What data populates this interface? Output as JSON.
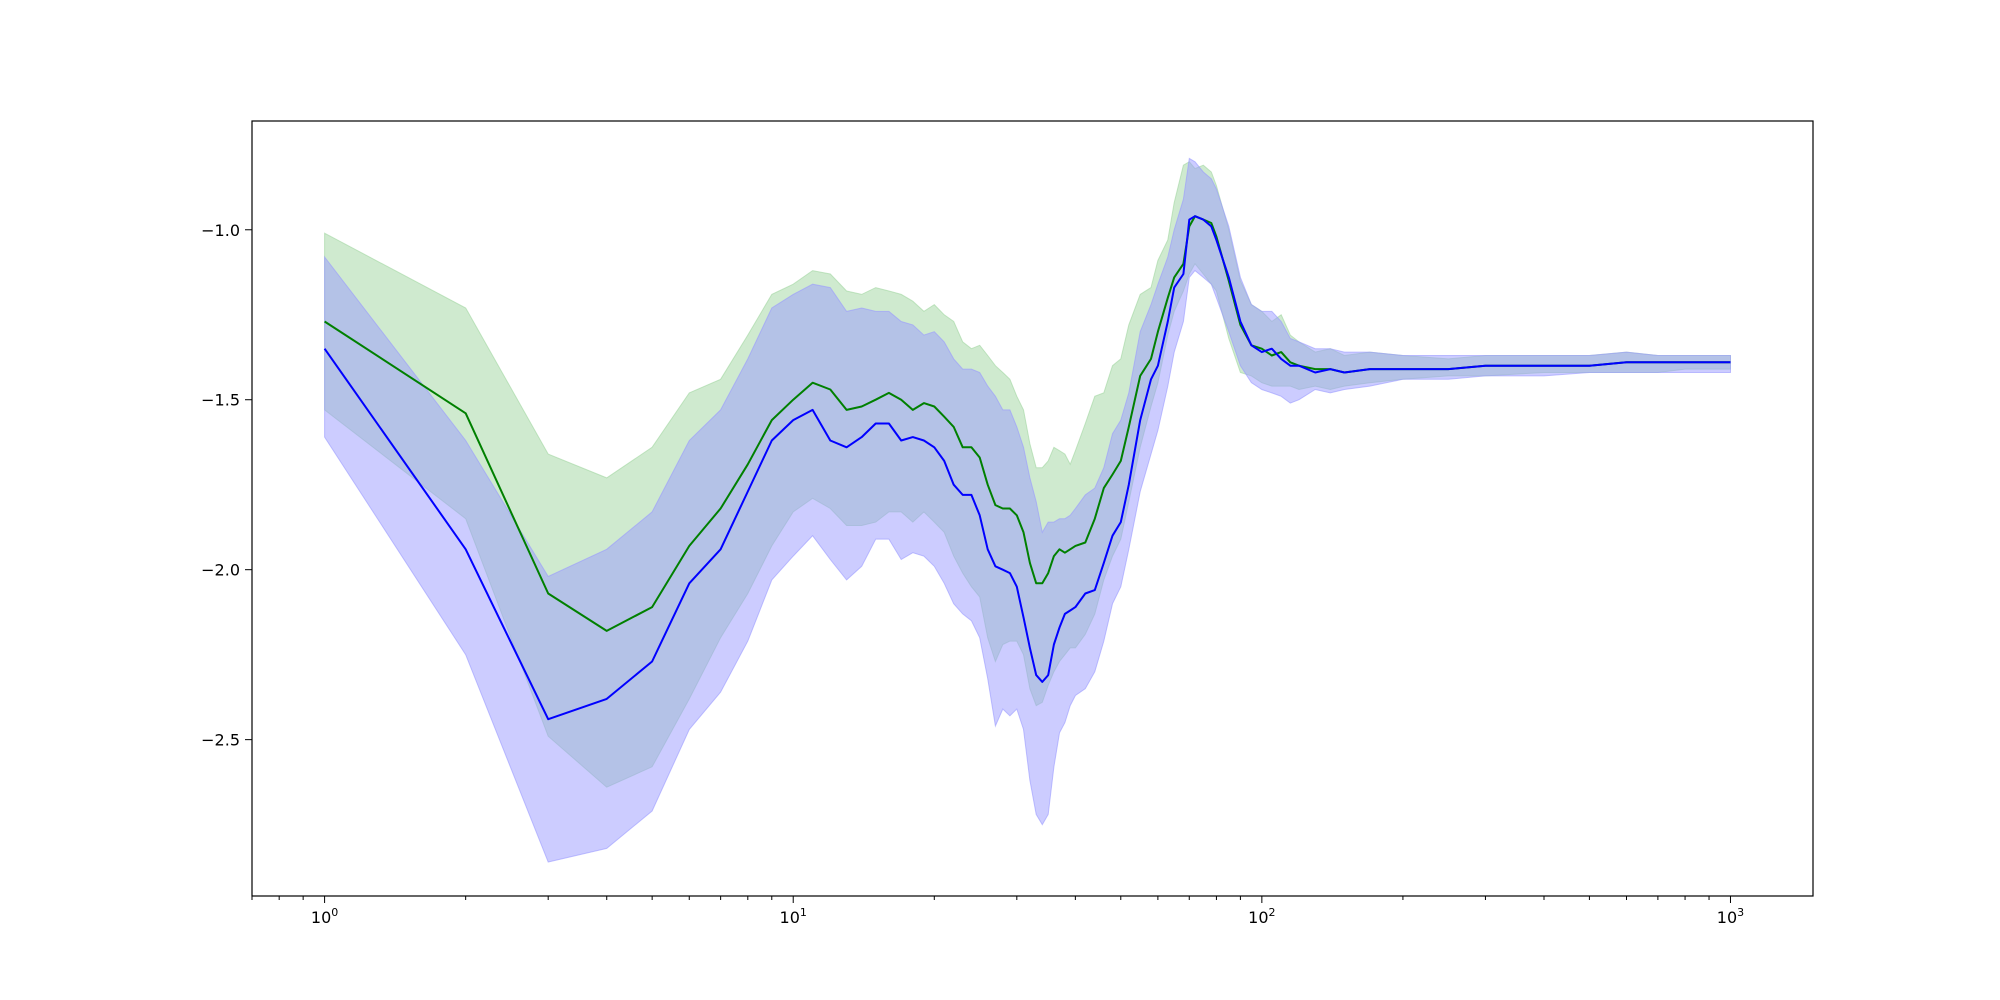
{
  "chart_data": {
    "type": "line",
    "title": "",
    "xlabel": "",
    "ylabel": "",
    "xscale": "log",
    "xlim": [
      0.7,
      1500
    ],
    "ylim": [
      -2.96,
      -0.68
    ],
    "grid": false,
    "x_ticks": [
      {
        "value": 1,
        "base": "10",
        "exp": "0"
      },
      {
        "value": 10,
        "base": "10",
        "exp": "1"
      },
      {
        "value": 100,
        "base": "10",
        "exp": "2"
      },
      {
        "value": 1000,
        "base": "10",
        "exp": "3"
      }
    ],
    "y_ticks": [
      {
        "value": -1.0,
        "label": "−1.0"
      },
      {
        "value": -1.5,
        "label": "−1.5"
      },
      {
        "value": -2.0,
        "label": "−2.0"
      },
      {
        "value": -2.5,
        "label": "−2.5"
      }
    ],
    "colors": {
      "green": "#008000",
      "blue": "#0000ff",
      "green_band": "#a0d6a0",
      "blue_band": "#9a9aff",
      "frame": "#000000"
    },
    "series": [
      {
        "color": "#008000",
        "band_color": "#a0d6a0",
        "band_opacity": 0.5,
        "x": [
          1,
          2,
          3,
          4,
          5,
          6,
          7,
          8,
          9,
          10,
          11,
          12,
          13,
          14,
          15,
          16,
          17,
          18,
          19,
          20,
          21,
          22,
          23,
          24,
          25,
          26,
          27,
          28,
          29,
          30,
          31,
          32,
          33,
          34,
          35,
          36,
          37,
          38,
          39,
          40,
          42,
          44,
          46,
          48,
          50,
          52,
          55,
          58,
          60,
          63,
          65,
          68,
          70,
          72,
          75,
          78,
          80,
          85,
          90,
          95,
          100,
          105,
          110,
          115,
          120,
          130,
          140,
          150,
          170,
          200,
          250,
          300,
          400,
          500,
          600,
          700,
          800,
          1000
        ],
        "y": [
          -1.27,
          -1.54,
          -2.07,
          -2.18,
          -2.11,
          -1.93,
          -1.82,
          -1.69,
          -1.56,
          -1.5,
          -1.45,
          -1.47,
          -1.53,
          -1.52,
          -1.5,
          -1.48,
          -1.5,
          -1.53,
          -1.51,
          -1.52,
          -1.55,
          -1.58,
          -1.64,
          -1.64,
          -1.67,
          -1.75,
          -1.81,
          -1.82,
          -1.82,
          -1.84,
          -1.89,
          -1.98,
          -2.04,
          -2.04,
          -2.01,
          -1.96,
          -1.94,
          -1.95,
          -1.94,
          -1.93,
          -1.92,
          -1.85,
          -1.76,
          -1.72,
          -1.68,
          -1.58,
          -1.43,
          -1.38,
          -1.3,
          -1.2,
          -1.14,
          -1.1,
          -0.99,
          -0.96,
          -0.97,
          -0.98,
          -1.02,
          -1.15,
          -1.28,
          -1.34,
          -1.35,
          -1.37,
          -1.36,
          -1.39,
          -1.4,
          -1.41,
          -1.41,
          -1.42,
          -1.41,
          -1.41,
          -1.41,
          -1.4,
          -1.4,
          -1.4,
          -1.39,
          -1.39,
          -1.39,
          -1.39
        ],
        "upper": [
          -1.01,
          -1.23,
          -1.66,
          -1.73,
          -1.64,
          -1.48,
          -1.44,
          -1.31,
          -1.19,
          -1.16,
          -1.12,
          -1.13,
          -1.18,
          -1.19,
          -1.17,
          -1.18,
          -1.19,
          -1.21,
          -1.24,
          -1.22,
          -1.25,
          -1.27,
          -1.33,
          -1.35,
          -1.34,
          -1.37,
          -1.4,
          -1.42,
          -1.44,
          -1.49,
          -1.53,
          -1.63,
          -1.7,
          -1.7,
          -1.68,
          -1.64,
          -1.65,
          -1.66,
          -1.69,
          -1.65,
          -1.57,
          -1.49,
          -1.48,
          -1.4,
          -1.38,
          -1.28,
          -1.19,
          -1.17,
          -1.09,
          -1.03,
          -0.92,
          -0.81,
          -0.8,
          -0.82,
          -0.81,
          -0.83,
          -0.87,
          -1.0,
          -1.15,
          -1.22,
          -1.24,
          -1.27,
          -1.25,
          -1.31,
          -1.33,
          -1.36,
          -1.35,
          -1.37,
          -1.36,
          -1.37,
          -1.38,
          -1.37,
          -1.37,
          -1.37,
          -1.36,
          -1.37,
          -1.37,
          -1.37
        ],
        "lower": [
          -1.53,
          -1.85,
          -2.49,
          -2.64,
          -2.58,
          -2.38,
          -2.2,
          -2.07,
          -1.93,
          -1.83,
          -1.79,
          -1.82,
          -1.87,
          -1.87,
          -1.86,
          -1.83,
          -1.83,
          -1.86,
          -1.83,
          -1.86,
          -1.89,
          -1.96,
          -2.01,
          -2.05,
          -2.08,
          -2.2,
          -2.27,
          -2.22,
          -2.21,
          -2.21,
          -2.25,
          -2.35,
          -2.4,
          -2.39,
          -2.34,
          -2.3,
          -2.27,
          -2.25,
          -2.23,
          -2.23,
          -2.19,
          -2.13,
          -2.03,
          -1.96,
          -1.91,
          -1.8,
          -1.64,
          -1.52,
          -1.45,
          -1.31,
          -1.24,
          -1.18,
          -1.13,
          -1.1,
          -1.13,
          -1.16,
          -1.18,
          -1.32,
          -1.42,
          -1.43,
          -1.45,
          -1.46,
          -1.46,
          -1.46,
          -1.47,
          -1.46,
          -1.47,
          -1.46,
          -1.45,
          -1.44,
          -1.43,
          -1.43,
          -1.42,
          -1.42,
          -1.42,
          -1.42,
          -1.41,
          -1.41
        ]
      },
      {
        "color": "#0000ff",
        "band_color": "#9a9aff",
        "band_opacity": 0.5,
        "x": [
          1,
          2,
          3,
          4,
          5,
          6,
          7,
          8,
          9,
          10,
          11,
          12,
          13,
          14,
          15,
          16,
          17,
          18,
          19,
          20,
          21,
          22,
          23,
          24,
          25,
          26,
          27,
          28,
          29,
          30,
          31,
          32,
          33,
          34,
          35,
          36,
          37,
          38,
          39,
          40,
          42,
          44,
          46,
          48,
          50,
          52,
          55,
          58,
          60,
          63,
          65,
          68,
          70,
          72,
          75,
          78,
          80,
          85,
          90,
          95,
          100,
          105,
          110,
          115,
          120,
          130,
          140,
          150,
          170,
          200,
          250,
          300,
          400,
          500,
          600,
          700,
          800,
          1000
        ],
        "y": [
          -1.35,
          -1.94,
          -2.44,
          -2.38,
          -2.27,
          -2.04,
          -1.94,
          -1.77,
          -1.62,
          -1.56,
          -1.53,
          -1.62,
          -1.64,
          -1.61,
          -1.57,
          -1.57,
          -1.62,
          -1.61,
          -1.62,
          -1.64,
          -1.68,
          -1.75,
          -1.78,
          -1.78,
          -1.84,
          -1.94,
          -1.99,
          -2.0,
          -2.01,
          -2.05,
          -2.14,
          -2.23,
          -2.31,
          -2.33,
          -2.31,
          -2.22,
          -2.17,
          -2.13,
          -2.12,
          -2.11,
          -2.07,
          -2.06,
          -1.98,
          -1.9,
          -1.86,
          -1.75,
          -1.56,
          -1.44,
          -1.4,
          -1.27,
          -1.17,
          -1.13,
          -0.97,
          -0.96,
          -0.97,
          -0.99,
          -1.03,
          -1.14,
          -1.27,
          -1.34,
          -1.36,
          -1.35,
          -1.38,
          -1.4,
          -1.4,
          -1.42,
          -1.41,
          -1.42,
          -1.41,
          -1.41,
          -1.41,
          -1.4,
          -1.4,
          -1.4,
          -1.39,
          -1.39,
          -1.39,
          -1.39
        ],
        "upper": [
          -1.08,
          -1.62,
          -2.02,
          -1.94,
          -1.83,
          -1.62,
          -1.53,
          -1.38,
          -1.23,
          -1.19,
          -1.16,
          -1.17,
          -1.24,
          -1.23,
          -1.24,
          -1.24,
          -1.27,
          -1.28,
          -1.31,
          -1.3,
          -1.33,
          -1.38,
          -1.41,
          -1.41,
          -1.42,
          -1.46,
          -1.49,
          -1.53,
          -1.53,
          -1.58,
          -1.64,
          -1.73,
          -1.8,
          -1.89,
          -1.86,
          -1.86,
          -1.85,
          -1.85,
          -1.84,
          -1.82,
          -1.78,
          -1.76,
          -1.7,
          -1.6,
          -1.56,
          -1.48,
          -1.3,
          -1.22,
          -1.16,
          -1.08,
          -1.0,
          -0.91,
          -0.79,
          -0.8,
          -0.83,
          -0.85,
          -0.88,
          -0.99,
          -1.14,
          -1.22,
          -1.24,
          -1.24,
          -1.27,
          -1.32,
          -1.33,
          -1.35,
          -1.35,
          -1.36,
          -1.36,
          -1.37,
          -1.37,
          -1.37,
          -1.37,
          -1.37,
          -1.36,
          -1.37,
          -1.37,
          -1.37
        ],
        "lower": [
          -1.61,
          -2.25,
          -2.86,
          -2.82,
          -2.71,
          -2.47,
          -2.36,
          -2.21,
          -2.03,
          -1.96,
          -1.9,
          -1.97,
          -2.03,
          -1.99,
          -1.91,
          -1.91,
          -1.97,
          -1.95,
          -1.96,
          -1.99,
          -2.04,
          -2.1,
          -2.13,
          -2.15,
          -2.2,
          -2.32,
          -2.46,
          -2.41,
          -2.43,
          -2.41,
          -2.47,
          -2.62,
          -2.72,
          -2.75,
          -2.72,
          -2.58,
          -2.48,
          -2.45,
          -2.4,
          -2.37,
          -2.35,
          -2.3,
          -2.21,
          -2.1,
          -2.05,
          -1.94,
          -1.77,
          -1.66,
          -1.59,
          -1.46,
          -1.36,
          -1.27,
          -1.14,
          -1.12,
          -1.14,
          -1.16,
          -1.2,
          -1.3,
          -1.4,
          -1.45,
          -1.47,
          -1.48,
          -1.49,
          -1.51,
          -1.5,
          -1.47,
          -1.48,
          -1.47,
          -1.46,
          -1.44,
          -1.44,
          -1.43,
          -1.43,
          -1.42,
          -1.42,
          -1.42,
          -1.42,
          -1.42
        ]
      }
    ]
  }
}
